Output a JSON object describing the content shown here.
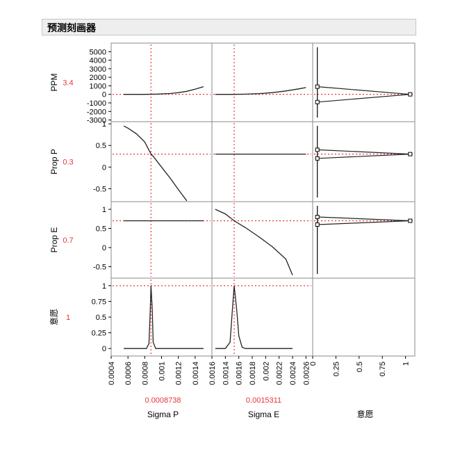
{
  "title": "预测刻画器",
  "colors": {
    "crosshair": "#e8333a",
    "curve": "#222222",
    "frame": "#888888",
    "value": "#e8333a"
  },
  "chart_data": {
    "type": "line",
    "factors": [
      {
        "name": "Sigma P",
        "current": "0.0008738",
        "range": [
          0.0004,
          0.0016
        ],
        "ticks": [
          "0.0004",
          "0.0006",
          "0.0008",
          "0.001",
          "0.0012",
          "0.0014",
          "0.0016"
        ]
      },
      {
        "name": "Sigma E",
        "current": "0.0015311",
        "range": [
          0.0012,
          0.0027
        ],
        "ticks": [
          "0.0014",
          "0.0016",
          "0.0018",
          "0.002",
          "0.0022",
          "0.0024",
          "0.0026"
        ]
      },
      {
        "name": "意愿",
        "range": [
          0,
          1.1
        ],
        "ticks": [
          "0",
          "0.25",
          "0.5",
          "0.75",
          "1"
        ]
      }
    ],
    "responses": [
      {
        "name": "PPM",
        "current": "3.4",
        "range": [
          -3200,
          6000
        ],
        "ticks": [
          "5000",
          "4000",
          "3000",
          "2000",
          "1000",
          "0",
          "-1000",
          "-2000",
          "-3000"
        ],
        "curves": [
          {
            "x": [
              0.00055,
              0.0008,
              0.00095,
              0.0011,
              0.0012,
              0.0013,
              0.0014,
              0.0015
            ],
            "y": [
              0,
              3.4,
              30,
              100,
              200,
              360,
              600,
              900
            ]
          },
          {
            "x": [
              0.00125,
              0.0014,
              0.0015311,
              0.0017,
              0.0019,
              0.0021,
              0.0023,
              0.0025,
              0.0026
            ],
            "y": [
              0,
              2,
              3.4,
              20,
              80,
              200,
              400,
              650,
              800
            ]
          }
        ],
        "desirability": {
          "points": [
            [
              0.05,
              900
            ],
            [
              1.05,
              3.4
            ],
            [
              0.05,
              -900
            ]
          ]
        }
      },
      {
        "name": "Prop P",
        "current": "0.3",
        "range": [
          -0.8,
          1.05
        ],
        "ticks": [
          "1",
          "0.5",
          "0",
          "-0.5"
        ],
        "curves": [
          {
            "x": [
              0.00055,
              0.0006,
              0.0007,
              0.0008,
              0.0008738,
              0.0009,
              0.001,
              0.0011,
              0.0012,
              0.0013
            ],
            "y": [
              0.95,
              0.9,
              0.77,
              0.58,
              0.3,
              0.25,
              0.0,
              -0.25,
              -0.52,
              -0.78
            ]
          },
          {
            "x": [
              0.00125,
              0.0026
            ],
            "y": [
              0.3,
              0.3
            ]
          }
        ],
        "desirability": {
          "points": [
            [
              0.05,
              0.4
            ],
            [
              1.05,
              0.3
            ],
            [
              0.05,
              0.2
            ]
          ]
        }
      },
      {
        "name": "Prop E",
        "current": "0.7",
        "range": [
          -0.8,
          1.2
        ],
        "ticks": [
          "1",
          "0.5",
          "0",
          "-0.5"
        ],
        "curves": [
          {
            "x": [
              0.00055,
              0.0015
            ],
            "y": [
              0.7,
              0.7
            ]
          },
          {
            "x": [
              0.00125,
              0.0014,
              0.0015311,
              0.0017,
              0.0019,
              0.0021,
              0.0023,
              0.0024
            ],
            "y": [
              1.0,
              0.88,
              0.7,
              0.52,
              0.28,
              0.02,
              -0.3,
              -0.72
            ]
          }
        ],
        "desirability": {
          "points": [
            [
              0.05,
              0.8
            ],
            [
              1.05,
              0.7
            ],
            [
              0.05,
              0.6
            ]
          ]
        }
      },
      {
        "name": "意愿",
        "current": "1",
        "range": [
          -0.12,
          1.12
        ],
        "ticks": [
          "1",
          "0.75",
          "0.5",
          "0.25",
          "0"
        ],
        "curves": [
          {
            "x": [
              0.00055,
              0.00082,
              0.00085,
              0.000865,
              0.0008738,
              0.00089,
              0.0009,
              0.00093,
              0.0015
            ],
            "y": [
              0,
              0,
              0.08,
              0.6,
              1,
              0.6,
              0.1,
              0,
              0
            ]
          },
          {
            "x": [
              0.00125,
              0.0014,
              0.00147,
              0.0015,
              0.0015311,
              0.00157,
              0.0016,
              0.00165,
              0.0017,
              0.0024
            ],
            "y": [
              0,
              0,
              0.1,
              0.55,
              1,
              0.6,
              0.2,
              0.02,
              0,
              0
            ]
          }
        ]
      }
    ]
  }
}
